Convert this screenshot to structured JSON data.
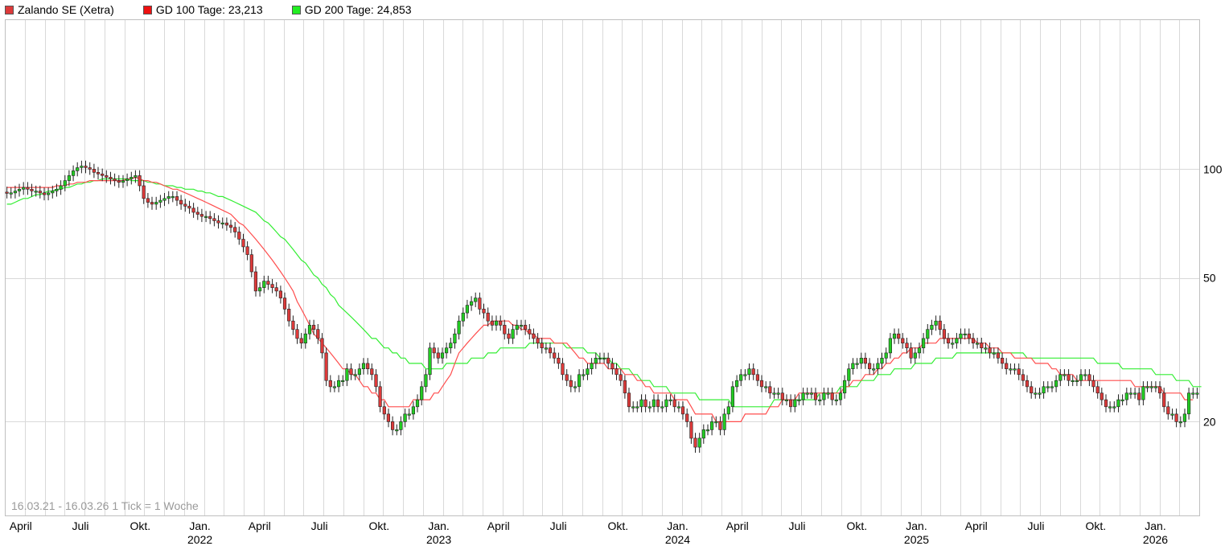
{
  "legend": {
    "stock_label": "Zalando SE (Xetra)",
    "ma100_label": "GD 100 Tage: 23,213",
    "ma200_label": "GD 200 Tage: 24,853"
  },
  "footer_note": "16.03.21 - 16.03.26   1 Tick = 1 Woche",
  "colors": {
    "down": "#dd3a3a",
    "up": "#22cc22",
    "ma100": "#ff4d4d",
    "ma200": "#33ee33",
    "grid": "#d9d9d9"
  },
  "chart_data": {
    "type": "candlestick",
    "scale": "log",
    "ylim": [
      11,
      260
    ],
    "y_ticks": [
      20,
      50,
      100
    ],
    "x_tick_labels": [
      {
        "month": "April",
        "year": ""
      },
      {
        "month": "Juli",
        "year": ""
      },
      {
        "month": "Okt.",
        "year": ""
      },
      {
        "month": "Jan.",
        "year": "2022"
      },
      {
        "month": "April",
        "year": ""
      },
      {
        "month": "Juli",
        "year": ""
      },
      {
        "month": "Okt.",
        "year": ""
      },
      {
        "month": "Jan.",
        "year": "2023"
      },
      {
        "month": "April",
        "year": ""
      },
      {
        "month": "Juli",
        "year": ""
      },
      {
        "month": "Okt.",
        "year": ""
      },
      {
        "month": "Jan.",
        "year": "2024"
      },
      {
        "month": "April",
        "year": ""
      },
      {
        "month": "Juli",
        "year": ""
      },
      {
        "month": "Okt.",
        "year": ""
      },
      {
        "month": "Jan.",
        "year": "2025"
      },
      {
        "month": "April",
        "year": ""
      },
      {
        "month": "Juli",
        "year": ""
      },
      {
        "month": "Okt.",
        "year": ""
      },
      {
        "month": "Jan.",
        "year": "2026"
      }
    ],
    "weekly_close": [
      86,
      86,
      87,
      88,
      89,
      88,
      87,
      87,
      86,
      85,
      86,
      87,
      88,
      90,
      93,
      96,
      99,
      101,
      102,
      101,
      100,
      98,
      97,
      96,
      95,
      94,
      93,
      92,
      93,
      94,
      95,
      96,
      90,
      83,
      81,
      80,
      81,
      82,
      83,
      84,
      84,
      82,
      80,
      79,
      78,
      76,
      75,
      74,
      74,
      73,
      72,
      71,
      71,
      70,
      69,
      67,
      64,
      61,
      58,
      52,
      46,
      47,
      49,
      48,
      47,
      46,
      44,
      41,
      38,
      36,
      34,
      33,
      35,
      37,
      36,
      34,
      31,
      26,
      25,
      25,
      26,
      26,
      28,
      27,
      27,
      28,
      29,
      28,
      27,
      25,
      22,
      21,
      20,
      19,
      19,
      20,
      21,
      21,
      22,
      23,
      25,
      27,
      32,
      31,
      30,
      31,
      32,
      33,
      35,
      38,
      40,
      42,
      43,
      44,
      41,
      40,
      38,
      37,
      38,
      37,
      35,
      34,
      36,
      37,
      37,
      36,
      35,
      34,
      33,
      32,
      32,
      31,
      30,
      29,
      27,
      26,
      25,
      25,
      27,
      27,
      28,
      29,
      30,
      30,
      30,
      29,
      28,
      27,
      26,
      24,
      22,
      22,
      22,
      23,
      22,
      22,
      23,
      22,
      22,
      23,
      23,
      22,
      22,
      21,
      20,
      18,
      17,
      18,
      19,
      19,
      20,
      20,
      19,
      21,
      22,
      25,
      26,
      27,
      27,
      28,
      27,
      26,
      25,
      25,
      24,
      24,
      24,
      23,
      23,
      22,
      23,
      23,
      24,
      24,
      24,
      23,
      23,
      24,
      24,
      23,
      23,
      24,
      26,
      28,
      29,
      29,
      30,
      29,
      28,
      28,
      29,
      30,
      31,
      34,
      35,
      34,
      33,
      32,
      30,
      31,
      32,
      34,
      36,
      37,
      38,
      36,
      34,
      33,
      33,
      34,
      35,
      35,
      34,
      33,
      33,
      32,
      32,
      31,
      31,
      30,
      29,
      28,
      28,
      28,
      27,
      26,
      25,
      24,
      24,
      24,
      25,
      25,
      25,
      26,
      27,
      27,
      26,
      26,
      26,
      27,
      27,
      26,
      25,
      24,
      23,
      22,
      22,
      22,
      23,
      23,
      24,
      24,
      24,
      23,
      25,
      25,
      25,
      25,
      24,
      22,
      21,
      21,
      20,
      20,
      21,
      24,
      24,
      24
    ],
    "ma100": [
      89,
      89,
      89,
      89,
      89,
      89,
      89,
      89,
      89,
      89,
      89,
      89,
      90,
      90,
      90,
      91,
      91,
      92,
      92,
      92,
      93,
      93,
      93,
      93,
      93,
      93,
      93,
      93,
      93,
      94,
      94,
      95,
      94,
      93,
      93,
      92,
      92,
      91,
      90,
      89,
      88,
      88,
      87,
      86,
      85,
      84,
      83,
      82,
      81,
      80,
      79,
      78,
      77,
      76,
      75,
      73,
      71,
      70,
      68,
      66,
      64,
      62,
      60,
      58,
      56,
      54,
      52,
      50,
      48,
      46,
      43,
      41,
      39,
      37,
      35,
      34,
      33,
      32,
      31,
      30,
      29,
      28,
      28,
      27,
      27,
      26,
      25,
      25,
      24,
      24,
      23,
      23,
      22,
      22,
      22,
      22,
      22,
      22,
      23,
      23,
      23,
      23,
      23,
      24,
      24,
      25,
      26,
      27,
      29,
      31,
      32,
      33,
      34,
      35,
      36,
      37,
      37,
      38,
      38,
      38,
      38,
      38,
      37,
      37,
      36,
      36,
      35,
      35,
      34,
      34,
      34,
      34,
      33,
      33,
      33,
      33,
      32,
      31,
      30,
      30,
      29,
      29,
      29,
      29,
      29,
      28,
      28,
      28,
      28,
      27,
      27,
      27,
      26,
      26,
      25,
      25,
      24,
      24,
      24,
      24,
      24,
      23,
      23,
      23,
      23,
      22,
      21,
      21,
      21,
      21,
      21,
      20,
      20,
      20,
      20,
      20,
      20,
      20,
      21,
      21,
      21,
      21,
      21,
      21,
      22,
      22,
      22,
      23,
      23,
      23,
      23,
      24,
      24,
      24,
      24,
      24,
      24,
      24,
      24,
      24,
      24,
      24,
      25,
      25,
      26,
      26,
      26,
      27,
      27,
      27,
      28,
      28,
      29,
      29,
      30,
      30,
      31,
      31,
      32,
      32,
      32,
      33,
      33,
      33,
      33,
      34,
      34,
      34,
      34,
      34,
      34,
      34,
      34,
      34,
      33,
      33,
      33,
      32,
      32,
      32,
      31,
      31,
      31,
      30,
      30,
      30,
      30,
      30,
      29,
      29,
      29,
      29,
      28,
      28,
      27,
      27,
      27,
      27,
      26,
      26,
      26,
      26,
      26,
      26,
      26,
      26,
      26,
      26,
      26,
      26,
      26,
      26,
      25,
      25,
      25,
      25,
      25,
      25,
      25,
      24,
      24,
      24,
      24,
      24,
      23,
      23,
      23
    ],
    "ma200": [
      80,
      80,
      81,
      82,
      83,
      83,
      84,
      85,
      85,
      86,
      87,
      87,
      88,
      88,
      89,
      89,
      90,
      91,
      91,
      92,
      92,
      93,
      93,
      94,
      94,
      94,
      94,
      94,
      94,
      94,
      93,
      93,
      93,
      93,
      92,
      92,
      91,
      91,
      90,
      90,
      90,
      89,
      89,
      88,
      88,
      88,
      87,
      87,
      86,
      86,
      85,
      84,
      84,
      83,
      82,
      81,
      80,
      79,
      78,
      77,
      76,
      74,
      72,
      71,
      69,
      67,
      65,
      64,
      62,
      60,
      58,
      56,
      55,
      53,
      51,
      50,
      48,
      47,
      45,
      44,
      42,
      41,
      40,
      39,
      38,
      37,
      36,
      35,
      34,
      34,
      33,
      32,
      32,
      31,
      31,
      30,
      30,
      29,
      29,
      29,
      29,
      28,
      28,
      28,
      28,
      28,
      29,
      29,
      29,
      29,
      29,
      29,
      30,
      30,
      30,
      30,
      31,
      31,
      31,
      32,
      32,
      32,
      32,
      32,
      32,
      32,
      33,
      33,
      33,
      33,
      33,
      33,
      33,
      33,
      33,
      32,
      32,
      32,
      32,
      32,
      31,
      31,
      31,
      30,
      30,
      30,
      29,
      29,
      28,
      28,
      28,
      27,
      27,
      26,
      26,
      26,
      25,
      25,
      25,
      25,
      24,
      24,
      24,
      24,
      24,
      24,
      24,
      23,
      23,
      23,
      23,
      23,
      23,
      23,
      23,
      22,
      22,
      22,
      22,
      22,
      22,
      22,
      22,
      22,
      22,
      23,
      23,
      23,
      23,
      23,
      23,
      23,
      23,
      23,
      23,
      23,
      24,
      24,
      24,
      24,
      24,
      25,
      25,
      25,
      25,
      25,
      26,
      26,
      26,
      26,
      27,
      27,
      27,
      27,
      28,
      28,
      28,
      28,
      28,
      29,
      29,
      29,
      29,
      29,
      30,
      30,
      30,
      30,
      30,
      31,
      31,
      31,
      31,
      31,
      31,
      31,
      31,
      31,
      31,
      31,
      31,
      31,
      31,
      31,
      31,
      31,
      30,
      30,
      30,
      30,
      30,
      30,
      30,
      30,
      30,
      30,
      30,
      30,
      30,
      30,
      30,
      30,
      30,
      29,
      29,
      29,
      29,
      29,
      29,
      28,
      28,
      28,
      28,
      28,
      28,
      28,
      28,
      27,
      27,
      27,
      27,
      27,
      26,
      26,
      26,
      26,
      25,
      25,
      25
    ]
  }
}
